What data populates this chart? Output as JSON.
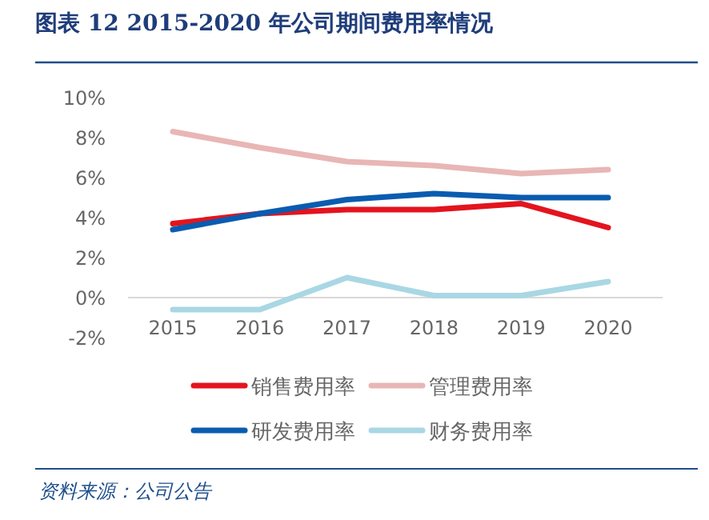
{
  "chart_data": {
    "type": "line",
    "title": "图表 12   2015-2020 年公司期间费用率情况",
    "categories": [
      "2015",
      "2016",
      "2017",
      "2018",
      "2019",
      "2020"
    ],
    "series": [
      {
        "name": "销售费用率",
        "color": "#e3141e",
        "values": [
          3.7,
          4.2,
          4.4,
          4.4,
          4.7,
          3.5
        ]
      },
      {
        "name": "管理费用率",
        "color": "#e8b6b5",
        "values": [
          8.3,
          7.5,
          6.8,
          6.6,
          6.2,
          6.4
        ]
      },
      {
        "name": "研发费用率",
        "color": "#0a5cb0",
        "values": [
          3.4,
          4.2,
          4.9,
          5.2,
          5.0,
          5.0
        ]
      },
      {
        "name": "财务费用率",
        "color": "#a9d7e4",
        "values": [
          -0.6,
          -0.6,
          1.0,
          0.1,
          0.1,
          0.8
        ]
      }
    ],
    "ylim": [
      -2,
      10
    ],
    "yticks": [
      {
        "value": -2,
        "label": "-2%"
      },
      {
        "value": 0,
        "label": "0%"
      },
      {
        "value": 2,
        "label": "2%"
      },
      {
        "value": 4,
        "label": "4%"
      },
      {
        "value": 6,
        "label": "6%"
      },
      {
        "value": 8,
        "label": "8%"
      },
      {
        "value": 10,
        "label": "10%"
      }
    ],
    "legend": "bottom",
    "grid": false,
    "marker": "none",
    "line_style": "solid",
    "annotations": [
      "资料来源：公司公告"
    ]
  }
}
